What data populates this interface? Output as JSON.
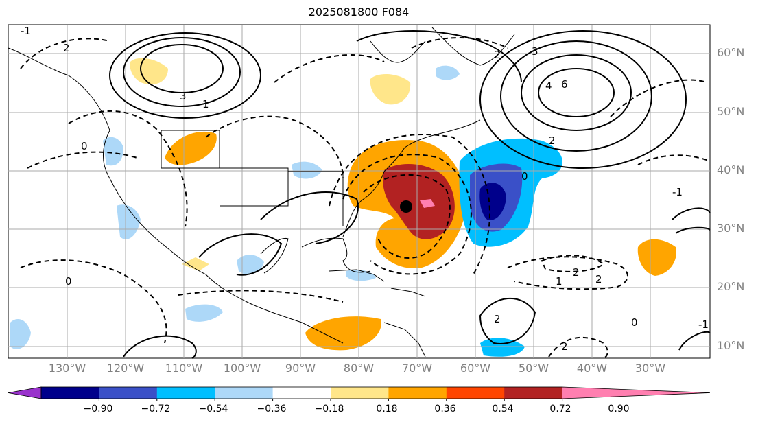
{
  "title": "2025081800 F084",
  "lat_labels": [
    "60°N",
    "50°N",
    "40°N",
    "30°N",
    "20°N",
    "10°N"
  ],
  "lon_labels": [
    "130°W",
    "120°W",
    "110°W",
    "100°W",
    "90°W",
    "80°W",
    "70°W",
    "60°W",
    "50°W",
    "40°W",
    "30°W"
  ],
  "colorbar": {
    "tick_labels": [
      "−0.90",
      "−0.72",
      "−0.54",
      "−0.36",
      "−0.18",
      "0.18",
      "0.36",
      "0.54",
      "0.72",
      "0.90"
    ],
    "colors": [
      "#9932cc",
      "#00008b",
      "#3a50c8",
      "#00bfff",
      "#add8f8",
      "#ffffff",
      "#ffe68a",
      "#ffa500",
      "#ff4500",
      "#b22222",
      "#ff7fb0"
    ]
  },
  "contour_labels": [
    "-1",
    "2",
    "3",
    "1",
    "0",
    "2",
    "3",
    "4",
    "6",
    "2",
    "0",
    "-1",
    "0",
    "2",
    "2",
    "1",
    "2",
    "0",
    "-1",
    "2"
  ],
  "storm_marker": "tropical-cyclone-center"
}
